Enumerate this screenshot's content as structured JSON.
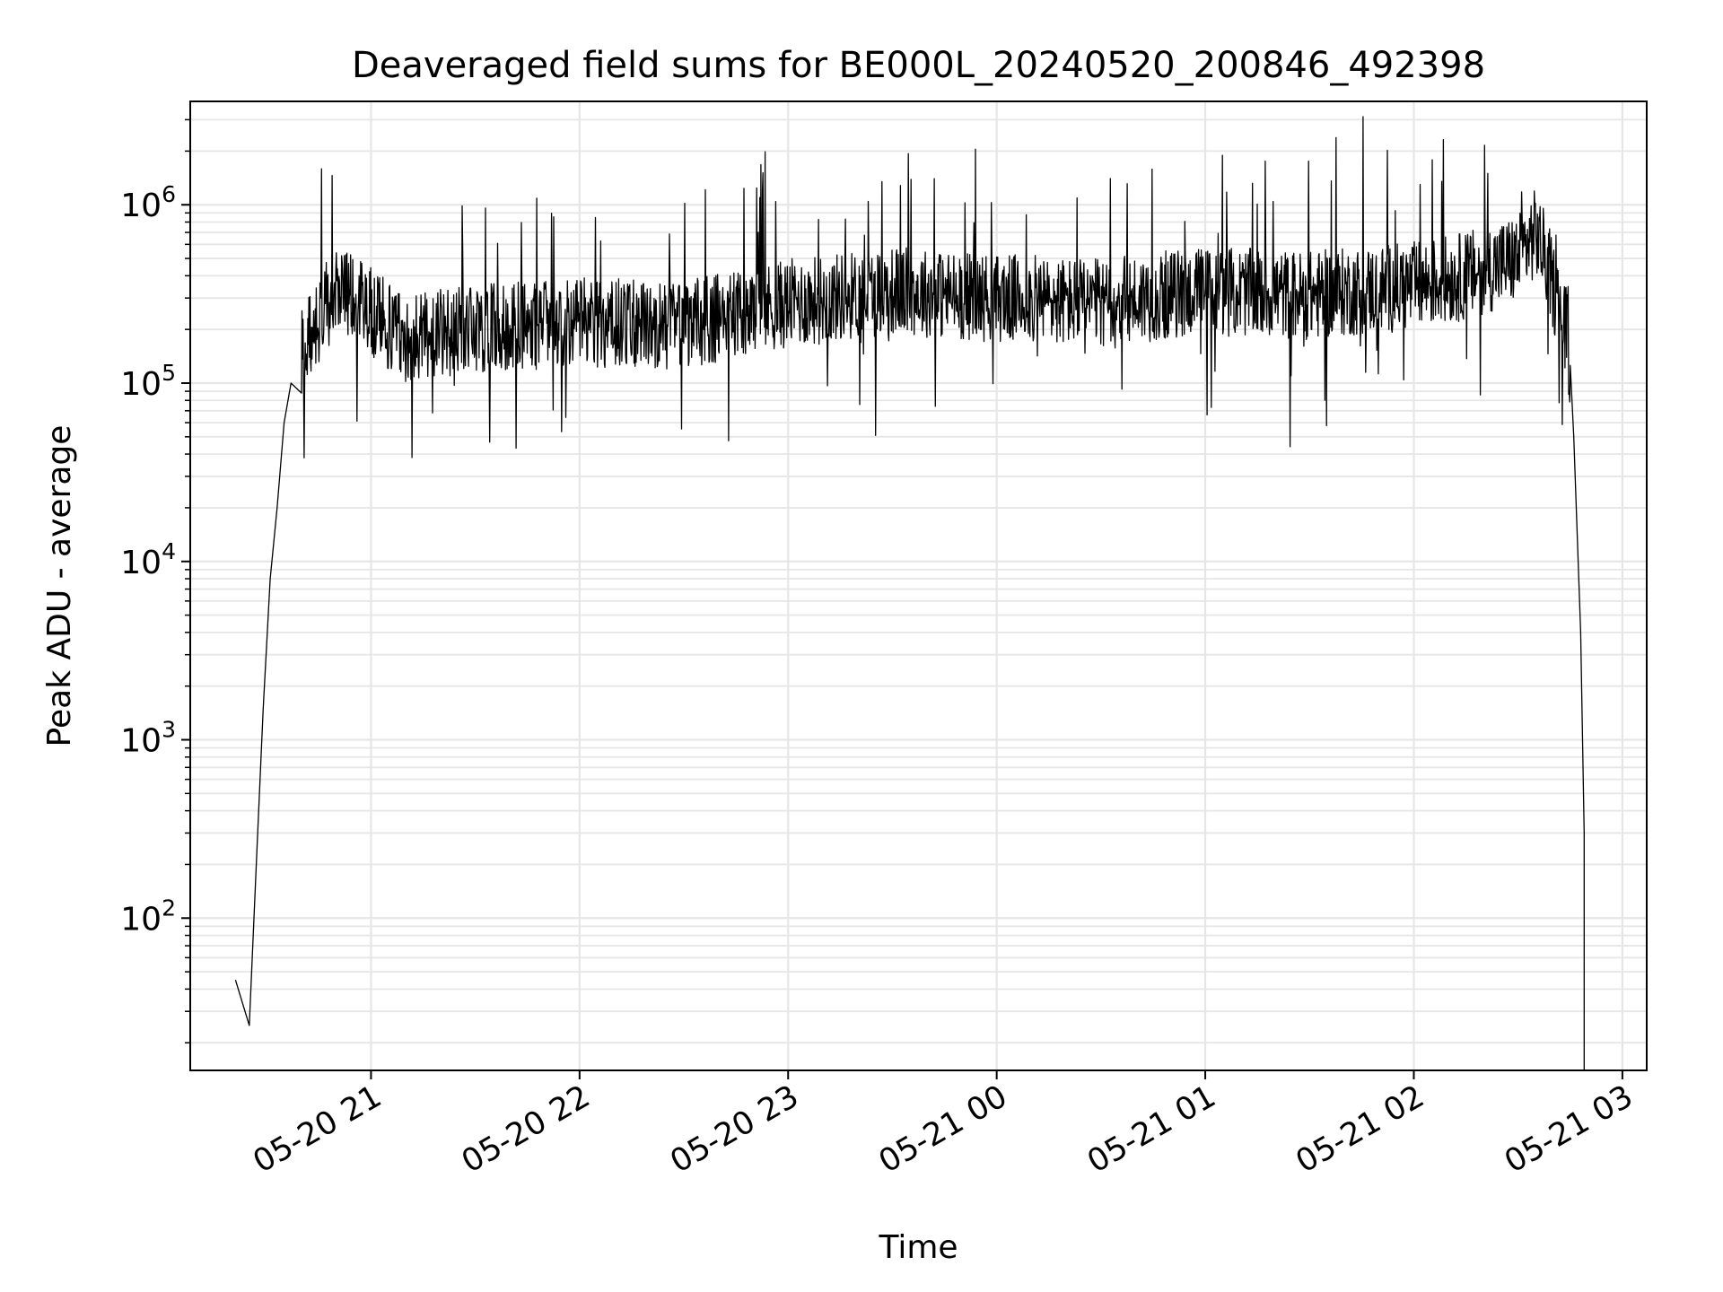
{
  "chart_data": {
    "type": "line",
    "title": "Deaveraged field sums for BE000L_20240520_200846_492398",
    "xlabel": "Time",
    "ylabel": "Peak ADU - average",
    "y_scale": "log",
    "ylim": [
      14,
      3800000
    ],
    "xlim": [
      "05-20 20:08",
      "05-21 03:07"
    ],
    "x_tick_labels": [
      "05-20 21",
      "05-20 22",
      "05-20 23",
      "05-21 00",
      "05-21 01",
      "05-21 02",
      "05-21 03"
    ],
    "x_ticks": [
      "05-20 21:00",
      "05-20 22:00",
      "05-20 23:00",
      "05-21 00:00",
      "05-21 01:00",
      "05-21 02:00",
      "05-21 03:00"
    ],
    "y_tick_exponents": [
      "2",
      "3",
      "4",
      "5",
      "6"
    ],
    "y_tick_values": [
      100,
      1000,
      10000,
      100000,
      1000000
    ],
    "grid": true,
    "line_color": "#000000",
    "grid_color": "#e6e6e6",
    "series": [
      {
        "x": [
          "05-20 20:21",
          "05-20 20:25",
          "05-20 20:27",
          "05-20 20:29",
          "05-20 20:31",
          "05-20 20:33",
          "05-20 20:35",
          "05-20 20:37",
          "05-20 20:40",
          "05-20 20:45",
          "05-20 20:50",
          "05-20 21:00",
          "05-20 21:10",
          "05-20 21:30",
          "05-20 22:00",
          "05-20 22:30",
          "05-20 23:00",
          "05-20 23:30",
          "05-21 00:00",
          "05-21 00:30",
          "05-21 01:00",
          "05-21 01:30",
          "05-21 02:00",
          "05-21 02:15",
          "05-21 02:30",
          "05-21 02:35",
          "05-21 02:38",
          "05-21 02:41",
          "05-21 02:44",
          "05-21 02:46",
          "05-21 02:48",
          "05-21 02:49"
        ],
        "values": [
          45,
          25,
          200,
          1500,
          8000,
          20000,
          60000,
          100000,
          150000,
          220000,
          350000,
          250000,
          180000,
          200000,
          220000,
          210000,
          280000,
          330000,
          300000,
          280000,
          330000,
          310000,
          350000,
          400000,
          500000,
          700000,
          500000,
          300000,
          200000,
          50000,
          4000,
          300
        ]
      }
    ]
  }
}
